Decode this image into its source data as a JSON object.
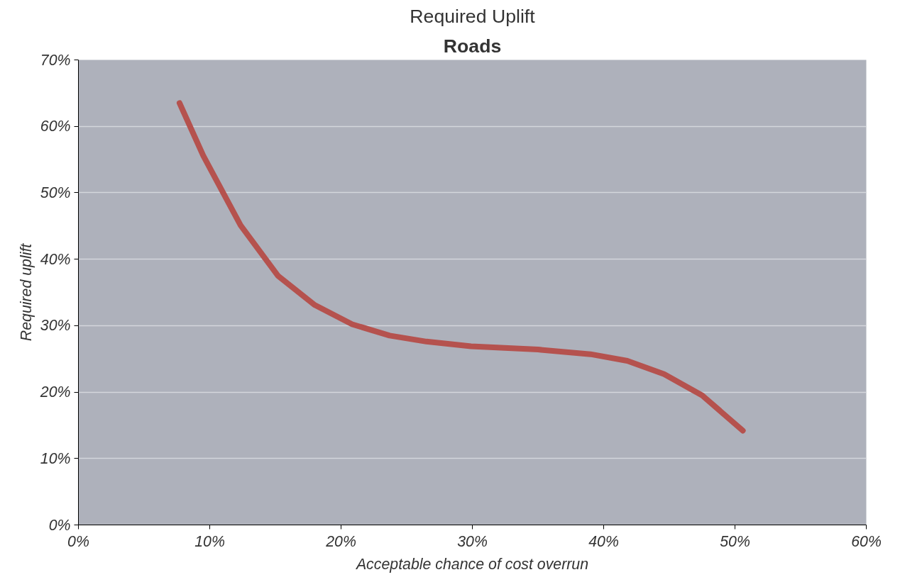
{
  "chart_data": {
    "type": "line",
    "title": "Required Uplift",
    "subtitle": "Roads",
    "xlabel": "Acceptable chance of cost overrun",
    "ylabel": "Required uplift",
    "x": [
      7.7,
      9.5,
      12.35,
      15.2,
      18.0,
      20.85,
      23.7,
      26.5,
      29.9,
      35.0,
      39.0,
      41.8,
      44.6,
      47.5,
      50.6
    ],
    "series": [
      {
        "color": "#b5524e",
        "values": [
          63.5,
          55.6,
          45.1,
          37.5,
          33.1,
          30.2,
          28.5,
          27.6,
          26.9,
          26.4,
          25.7,
          24.7,
          22.7,
          19.5,
          14.2
        ]
      }
    ],
    "xlim": [
      0,
      60
    ],
    "ylim": [
      0,
      70
    ],
    "xticks": [
      {
        "value": 0,
        "label": "0%"
      },
      {
        "value": 10,
        "label": "10%"
      },
      {
        "value": 20,
        "label": "20%"
      },
      {
        "value": 30,
        "label": "30%"
      },
      {
        "value": 40,
        "label": "40%"
      },
      {
        "value": 50,
        "label": "50%"
      },
      {
        "value": 60,
        "label": "60%"
      }
    ],
    "yticks": [
      {
        "value": 0,
        "label": "0%"
      },
      {
        "value": 10,
        "label": "10%"
      },
      {
        "value": 20,
        "label": "20%"
      },
      {
        "value": 30,
        "label": "30%"
      },
      {
        "value": 40,
        "label": "40%"
      },
      {
        "value": 50,
        "label": "50%"
      },
      {
        "value": 60,
        "label": "60%"
      },
      {
        "value": 70,
        "label": "70%"
      }
    ],
    "grid": "y",
    "marker": "none",
    "line_style": "solid"
  }
}
